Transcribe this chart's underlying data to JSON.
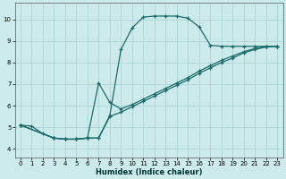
{
  "xlabel": "Humidex (Indice chaleur)",
  "ylabel": "",
  "bg_color": "#cdeaea",
  "grid_color": "#b0d8d8",
  "line_color": "#1a6b6b",
  "xlim": [
    -0.5,
    23.5
  ],
  "ylim": [
    3.6,
    10.75
  ],
  "xticks": [
    0,
    1,
    2,
    3,
    4,
    5,
    6,
    7,
    8,
    9,
    10,
    11,
    12,
    13,
    14,
    15,
    16,
    17,
    18,
    19,
    20,
    21,
    22,
    23
  ],
  "yticks": [
    4,
    5,
    6,
    7,
    8,
    9,
    10
  ],
  "curve1_x": [
    0,
    1,
    2,
    3,
    4,
    5,
    6,
    7,
    8,
    9,
    10,
    11,
    12,
    13,
    14,
    15,
    16,
    17,
    18,
    19,
    20,
    21,
    22,
    23
  ],
  "curve1_y": [
    5.1,
    5.05,
    4.7,
    4.5,
    4.45,
    4.45,
    4.5,
    4.5,
    5.55,
    8.6,
    9.6,
    10.1,
    10.15,
    10.15,
    10.15,
    10.05,
    9.65,
    8.8,
    8.75,
    8.75,
    8.75,
    8.75,
    8.75,
    8.75
  ],
  "curve2_x": [
    0,
    3,
    4,
    5,
    6,
    7,
    8,
    9,
    10,
    11,
    12,
    13,
    14,
    15,
    16,
    17,
    18,
    19,
    20,
    21,
    22,
    23
  ],
  "curve2_y": [
    5.1,
    4.5,
    4.45,
    4.45,
    4.5,
    7.05,
    6.15,
    5.85,
    6.05,
    6.3,
    6.55,
    6.8,
    7.05,
    7.3,
    7.6,
    7.85,
    8.1,
    8.3,
    8.5,
    8.65,
    8.75,
    8.75
  ],
  "curve3_x": [
    0,
    3,
    4,
    5,
    6,
    7,
    8,
    9,
    10,
    11,
    12,
    13,
    14,
    15,
    16,
    17,
    18,
    19,
    20,
    21,
    22,
    23
  ],
  "curve3_y": [
    5.1,
    4.5,
    4.45,
    4.45,
    4.5,
    4.5,
    5.5,
    5.7,
    5.95,
    6.2,
    6.45,
    6.7,
    6.95,
    7.2,
    7.5,
    7.75,
    8.0,
    8.2,
    8.45,
    8.6,
    8.72,
    8.75
  ]
}
